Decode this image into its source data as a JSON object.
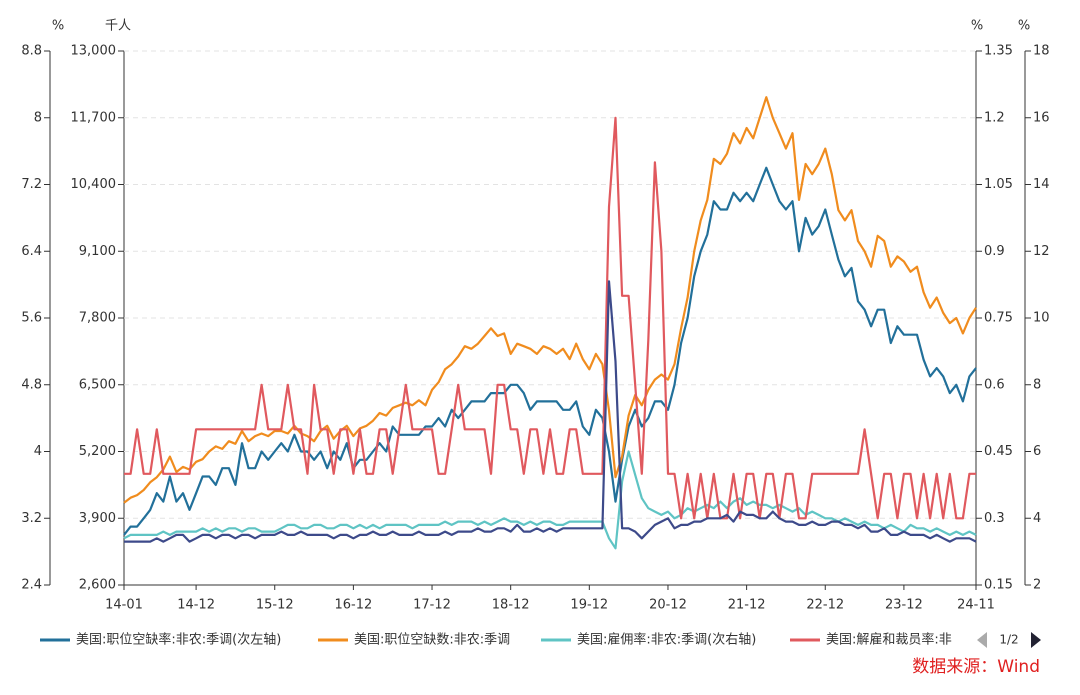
{
  "chart_data": {
    "type": "line",
    "grid": true,
    "legend_page": "1/2",
    "categories": [
      "14-01",
      null,
      null,
      null,
      null,
      null,
      null,
      null,
      null,
      null,
      null,
      "14-12",
      null,
      null,
      null,
      null,
      null,
      null,
      null,
      null,
      null,
      null,
      null,
      "15-12",
      null,
      null,
      null,
      null,
      null,
      null,
      null,
      null,
      null,
      null,
      null,
      "16-12",
      null,
      null,
      null,
      null,
      null,
      null,
      null,
      null,
      null,
      null,
      null,
      "17-12",
      null,
      null,
      null,
      null,
      null,
      null,
      null,
      null,
      null,
      null,
      null,
      "18-12",
      null,
      null,
      null,
      null,
      null,
      null,
      null,
      null,
      null,
      null,
      null,
      "19-12",
      null,
      null,
      null,
      null,
      null,
      null,
      null,
      null,
      null,
      null,
      null,
      "20-12",
      null,
      null,
      null,
      null,
      null,
      null,
      null,
      null,
      null,
      null,
      null,
      "21-12",
      null,
      null,
      null,
      null,
      null,
      null,
      null,
      null,
      null,
      null,
      null,
      "22-12",
      null,
      null,
      null,
      null,
      null,
      null,
      null,
      null,
      null,
      null,
      null,
      "23-12",
      null,
      null,
      null,
      null,
      null,
      null,
      null,
      null,
      null,
      null,
      "24-11"
    ],
    "axes": [
      {
        "id": "y1",
        "position": "left-outer",
        "unit": "%",
        "lim": [
          2.4,
          8.8
        ],
        "ticks": [
          2.4,
          3.2,
          4,
          4.8,
          5.6,
          6.4,
          7.2,
          8,
          8.8
        ]
      },
      {
        "id": "y",
        "position": "left-inner",
        "unit": "千人",
        "lim": [
          2600,
          13000
        ],
        "ticks": [
          {
            "value": 2600,
            "label": "2,600"
          },
          {
            "value": 3900,
            "label": "3,900"
          },
          {
            "value": 5200,
            "label": "5,200"
          },
          {
            "value": 6500,
            "label": "6,500"
          },
          {
            "value": 7800,
            "label": "7,800"
          },
          {
            "value": 9100,
            "label": "9,100"
          },
          {
            "value": 10400,
            "label": "10,400"
          },
          {
            "value": 11700,
            "label": "11,700"
          },
          {
            "value": 13000,
            "label": "13,000"
          }
        ]
      },
      {
        "id": "y2",
        "position": "right-inner",
        "unit": "%",
        "lim": [
          0.15,
          1.35
        ],
        "ticks": [
          0.15,
          0.3,
          0.45,
          0.6,
          0.75,
          0.9,
          1.05,
          1.2,
          1.35
        ]
      },
      {
        "id": "y3",
        "position": "right-outer",
        "unit": "%",
        "lim": [
          2,
          18
        ],
        "ticks": [
          2,
          4,
          6,
          8,
          10,
          12,
          14,
          16,
          18
        ]
      }
    ],
    "series": [
      {
        "name": "美国:职位空缺率:非农:季调(次左轴)",
        "color": "#22709a",
        "axis": "y1",
        "values": [
          3.0,
          3.1,
          3.1,
          3.2,
          3.3,
          3.5,
          3.4,
          3.7,
          3.4,
          3.5,
          3.3,
          3.5,
          3.7,
          3.7,
          3.6,
          3.8,
          3.8,
          3.6,
          4.1,
          3.8,
          3.8,
          4.0,
          3.9,
          4.0,
          4.1,
          4.0,
          4.2,
          4.0,
          4.0,
          3.9,
          4.0,
          3.8,
          4.0,
          3.9,
          4.1,
          3.8,
          3.9,
          3.9,
          4.0,
          4.1,
          4.0,
          4.3,
          4.2,
          4.2,
          4.2,
          4.2,
          4.3,
          4.3,
          4.4,
          4.3,
          4.5,
          4.4,
          4.5,
          4.6,
          4.6,
          4.6,
          4.7,
          4.7,
          4.7,
          4.8,
          4.8,
          4.7,
          4.5,
          4.6,
          4.6,
          4.6,
          4.6,
          4.5,
          4.5,
          4.6,
          4.3,
          4.2,
          4.5,
          4.4,
          4.0,
          3.4,
          3.9,
          4.3,
          4.5,
          4.3,
          4.4,
          4.6,
          4.6,
          4.5,
          4.8,
          5.3,
          5.6,
          6.1,
          6.4,
          6.6,
          7.0,
          6.9,
          6.9,
          7.1,
          7.0,
          7.1,
          7.0,
          7.2,
          7.4,
          7.2,
          7.0,
          6.9,
          7.0,
          6.4,
          6.8,
          6.6,
          6.7,
          6.9,
          6.6,
          6.3,
          6.1,
          6.2,
          5.8,
          5.7,
          5.5,
          5.7,
          5.7,
          5.3,
          5.5,
          5.4,
          5.4,
          5.4,
          5.1,
          4.9,
          5.0,
          4.9,
          4.7,
          4.8,
          4.6,
          4.9,
          5.0
        ]
      },
      {
        "name": "美国:职位空缺数:非农:季调",
        "color": "#f08c1e",
        "axis": "y",
        "values": [
          4200,
          4300,
          4350,
          4450,
          4600,
          4700,
          4850,
          5100,
          4800,
          4900,
          4850,
          5000,
          5050,
          5200,
          5300,
          5250,
          5400,
          5350,
          5600,
          5400,
          5500,
          5550,
          5500,
          5600,
          5600,
          5550,
          5700,
          5550,
          5500,
          5400,
          5600,
          5700,
          5450,
          5600,
          5700,
          5500,
          5650,
          5700,
          5800,
          5950,
          5900,
          6050,
          6100,
          6150,
          6100,
          6200,
          6100,
          6400,
          6550,
          6800,
          6900,
          7050,
          7250,
          7200,
          7300,
          7450,
          7600,
          7450,
          7500,
          7100,
          7300,
          7250,
          7200,
          7100,
          7250,
          7200,
          7100,
          7200,
          7000,
          7300,
          7000,
          6800,
          7100,
          6900,
          6000,
          4700,
          5100,
          5900,
          6300,
          6100,
          6400,
          6600,
          6700,
          6600,
          6900,
          7600,
          8200,
          9100,
          9700,
          10100,
          10900,
          10800,
          11000,
          11400,
          11200,
          11500,
          11300,
          11700,
          12100,
          11700,
          11400,
          11100,
          11400,
          10100,
          10800,
          10600,
          10800,
          11100,
          10600,
          9900,
          9700,
          9900,
          9300,
          9100,
          8800,
          9400,
          9300,
          8800,
          9000,
          8900,
          8700,
          8800,
          8300,
          8000,
          8200,
          7900,
          7700,
          7800,
          7500,
          7800,
          8000
        ]
      },
      {
        "name": "美国:雇佣率:非农:季调(次右轴)",
        "color": "#5fc4c4",
        "axis": "y3",
        "values": [
          3.4,
          3.5,
          3.5,
          3.5,
          3.5,
          3.5,
          3.6,
          3.5,
          3.6,
          3.6,
          3.6,
          3.6,
          3.7,
          3.6,
          3.7,
          3.6,
          3.7,
          3.7,
          3.6,
          3.7,
          3.7,
          3.6,
          3.6,
          3.6,
          3.7,
          3.8,
          3.8,
          3.7,
          3.7,
          3.8,
          3.8,
          3.7,
          3.7,
          3.8,
          3.8,
          3.7,
          3.8,
          3.7,
          3.8,
          3.7,
          3.8,
          3.8,
          3.8,
          3.8,
          3.7,
          3.8,
          3.8,
          3.8,
          3.8,
          3.9,
          3.8,
          3.9,
          3.9,
          3.9,
          3.8,
          3.9,
          3.8,
          3.9,
          4.0,
          3.9,
          3.9,
          3.8,
          3.9,
          3.8,
          3.9,
          3.9,
          3.8,
          3.8,
          3.9,
          3.9,
          3.9,
          3.9,
          3.9,
          3.9,
          3.4,
          3.1,
          5.1,
          6.0,
          5.3,
          4.6,
          4.3,
          4.2,
          4.1,
          4.2,
          4.0,
          4.1,
          4.3,
          4.2,
          4.3,
          4.4,
          4.3,
          4.5,
          4.3,
          4.5,
          4.6,
          4.4,
          4.5,
          4.4,
          4.4,
          4.3,
          4.4,
          4.3,
          4.2,
          4.3,
          4.1,
          4.2,
          4.1,
          4.0,
          4.0,
          3.9,
          4.0,
          3.9,
          3.8,
          3.9,
          3.8,
          3.8,
          3.7,
          3.8,
          3.7,
          3.6,
          3.8,
          3.7,
          3.7,
          3.6,
          3.7,
          3.6,
          3.5,
          3.6,
          3.5,
          3.6,
          3.5
        ]
      },
      {
        "name": "美国:解雇和裁员率:非",
        "color": "#e0595e",
        "axis": "y2",
        "values": [
          0.4,
          0.4,
          0.5,
          0.4,
          0.4,
          0.5,
          0.4,
          0.4,
          0.4,
          0.4,
          0.4,
          0.5,
          0.5,
          0.5,
          0.5,
          0.5,
          0.5,
          0.5,
          0.5,
          0.5,
          0.5,
          0.6,
          0.5,
          0.5,
          0.5,
          0.6,
          0.5,
          0.5,
          0.4,
          0.6,
          0.5,
          0.5,
          0.4,
          0.5,
          0.5,
          0.4,
          0.5,
          0.4,
          0.4,
          0.5,
          0.5,
          0.4,
          0.5,
          0.6,
          0.5,
          0.5,
          0.5,
          0.5,
          0.4,
          0.4,
          0.5,
          0.6,
          0.5,
          0.5,
          0.5,
          0.5,
          0.4,
          0.6,
          0.6,
          0.5,
          0.5,
          0.4,
          0.5,
          0.5,
          0.4,
          0.5,
          0.4,
          0.4,
          0.5,
          0.5,
          0.4,
          0.4,
          0.4,
          0.4,
          1.0,
          1.2,
          0.8,
          0.8,
          0.6,
          0.4,
          0.7,
          1.1,
          0.9,
          0.4,
          0.4,
          0.3,
          0.4,
          0.3,
          0.4,
          0.3,
          0.4,
          0.3,
          0.3,
          0.4,
          0.3,
          0.4,
          0.4,
          0.3,
          0.4,
          0.4,
          0.3,
          0.4,
          0.4,
          0.3,
          0.3,
          0.4,
          0.4,
          0.4,
          0.4,
          0.4,
          0.4,
          0.4,
          0.4,
          0.5,
          0.4,
          0.3,
          0.4,
          0.4,
          0.3,
          0.4,
          0.4,
          0.3,
          0.4,
          0.3,
          0.4,
          0.3,
          0.4,
          0.3,
          0.3,
          0.4,
          0.4
        ]
      },
      {
        "color": "#3d4a8a",
        "axis": "y3",
        "values": [
          3.3,
          3.3,
          3.3,
          3.3,
          3.3,
          3.4,
          3.3,
          3.4,
          3.5,
          3.5,
          3.3,
          3.4,
          3.5,
          3.5,
          3.4,
          3.5,
          3.5,
          3.4,
          3.5,
          3.5,
          3.4,
          3.5,
          3.5,
          3.5,
          3.6,
          3.5,
          3.5,
          3.6,
          3.5,
          3.5,
          3.5,
          3.5,
          3.4,
          3.5,
          3.5,
          3.4,
          3.5,
          3.5,
          3.6,
          3.5,
          3.5,
          3.6,
          3.5,
          3.5,
          3.5,
          3.6,
          3.5,
          3.5,
          3.5,
          3.6,
          3.5,
          3.6,
          3.6,
          3.6,
          3.7,
          3.6,
          3.6,
          3.7,
          3.7,
          3.6,
          3.8,
          3.6,
          3.6,
          3.7,
          3.6,
          3.7,
          3.6,
          3.7,
          3.7,
          3.7,
          3.7,
          3.7,
          3.7,
          3.7,
          11.1,
          8.7,
          3.7,
          3.7,
          3.6,
          3.4,
          3.6,
          3.8,
          3.9,
          4.0,
          3.7,
          3.8,
          3.8,
          3.9,
          3.9,
          4.0,
          4.0,
          4.0,
          4.1,
          3.9,
          4.2,
          4.1,
          4.1,
          4.0,
          4.0,
          4.2,
          4.0,
          3.9,
          3.9,
          3.8,
          3.8,
          3.9,
          3.8,
          3.8,
          3.9,
          3.9,
          3.8,
          3.8,
          3.7,
          3.8,
          3.6,
          3.6,
          3.7,
          3.5,
          3.5,
          3.6,
          3.5,
          3.5,
          3.5,
          3.4,
          3.5,
          3.4,
          3.3,
          3.4,
          3.4,
          3.4,
          3.3
        ]
      }
    ]
  },
  "source": "数据来源：Wind"
}
